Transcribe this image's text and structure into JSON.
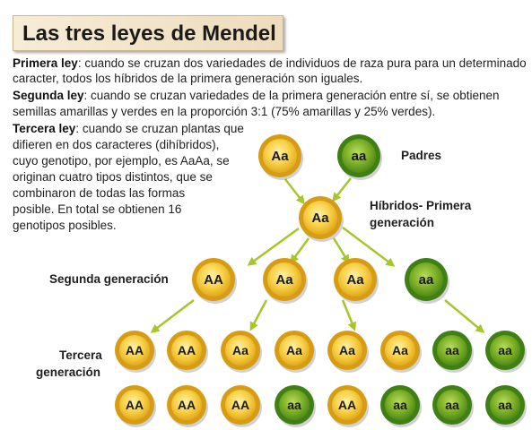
{
  "title": "Las tres leyes de Mendel",
  "laws": {
    "first": {
      "name": "Primera ley",
      "line1": ": cuando se cruzan dos variedades de individuos de raza pura para un determinado",
      "line2": "caracter, todos los híbridos de la primera generación son iguales."
    },
    "second": {
      "name": "Segunda ley",
      "line1": ": cuando se cruzan variedades de la primera generación entre sí, se obtienen",
      "line2": "semillas amarillas y verdes en la proporción 3:1 (75% amarillas y 25% verdes)."
    },
    "third": {
      "name": "Tercera ley",
      "line1": ": cuando se cruzan plantas que",
      "lines": [
        "difieren en dos caracteres (dihíbridos),",
        "cuyo genotipo, por ejemplo, es AaAa, se",
        "originan cuatro tipos distintos, que se",
        "combinaron de todas las formas",
        "posible. En total se obtienen 16",
        "genotipos posibles."
      ]
    }
  },
  "labels": {
    "parents": "Padres",
    "hybrids_1": "Híbridos- Primera",
    "hybrids_2": "generación",
    "second_gen": "Segunda generación",
    "third_gen_1": "Tercera",
    "third_gen_2": "generación"
  },
  "colors": {
    "yellow_ring": "#d69d14",
    "yellow_fill": "#f8d24b",
    "green_ring": "#3f7f14",
    "green_fill": "#7fb228",
    "arrow": "#a6c62c"
  },
  "circles": {
    "parents": [
      {
        "genotype": "Aa",
        "color": "yellow"
      },
      {
        "genotype": "aa",
        "color": "green"
      }
    ],
    "hybrid": [
      {
        "genotype": "Aa",
        "color": "yellow"
      }
    ],
    "second_generation": [
      {
        "genotype": "AA",
        "color": "yellow"
      },
      {
        "genotype": "Aa",
        "color": "yellow"
      },
      {
        "genotype": "Aa",
        "color": "yellow"
      },
      {
        "genotype": "aa",
        "color": "green"
      }
    ],
    "third_generation_row1": [
      {
        "genotype": "AA",
        "color": "yellow"
      },
      {
        "genotype": "AA",
        "color": "yellow"
      },
      {
        "genotype": "Aa",
        "color": "yellow"
      },
      {
        "genotype": "Aa",
        "color": "yellow"
      },
      {
        "genotype": "Aa",
        "color": "yellow"
      },
      {
        "genotype": "Aa",
        "color": "yellow"
      },
      {
        "genotype": "aa",
        "color": "green"
      },
      {
        "genotype": "aa",
        "color": "green"
      }
    ],
    "third_generation_row2": [
      {
        "genotype": "AA",
        "color": "yellow"
      },
      {
        "genotype": "AA",
        "color": "yellow"
      },
      {
        "genotype": "AA",
        "color": "yellow"
      },
      {
        "genotype": "aa",
        "color": "green"
      },
      {
        "genotype": "AA",
        "color": "yellow"
      },
      {
        "genotype": "aa",
        "color": "green"
      },
      {
        "genotype": "aa",
        "color": "green"
      },
      {
        "genotype": "aa",
        "color": "green"
      }
    ]
  }
}
